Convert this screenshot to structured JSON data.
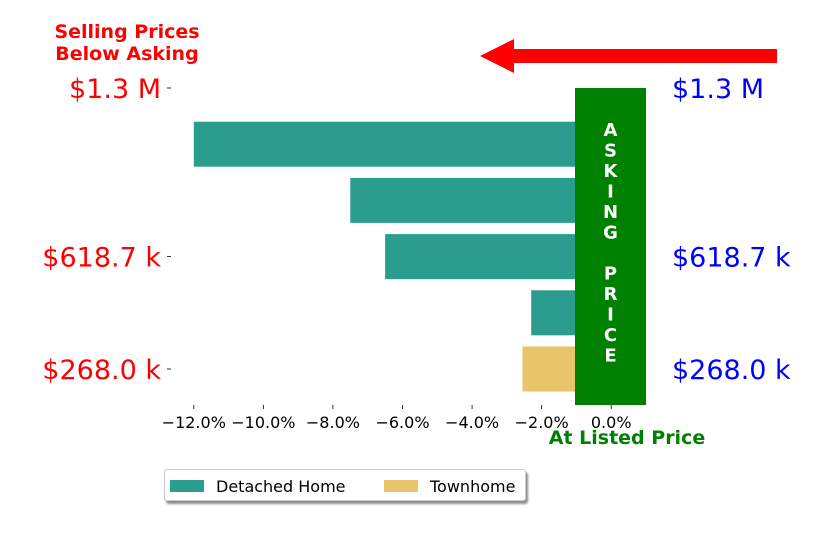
{
  "chart_data": {
    "type": "bar",
    "orientation": "horizontal",
    "title_left": [
      "Selling Prices",
      "Below Asking"
    ],
    "xlabel": "At Listed Price",
    "asking_price_label": [
      "A",
      "S",
      "K",
      "I",
      "N",
      "G",
      "",
      "P",
      "R",
      "I",
      "C",
      "E"
    ],
    "xlim": [
      -13.0,
      1.0
    ],
    "x_ticks": [
      -12,
      -10,
      -8,
      -6,
      -4,
      -2,
      0
    ],
    "x_tick_labels": [
      "−12.0%",
      "−10.0%",
      "−8.0%",
      "−6.0%",
      "−4.0%",
      "−2.0%",
      "0.0%"
    ],
    "y_tick_labels_left": [
      {
        "label": "$1.3 M",
        "row": 0
      },
      {
        "label": "$618.7 k",
        "row": 3
      },
      {
        "label": "$268.0 k",
        "row": 5
      }
    ],
    "y_tick_labels_right": [
      {
        "label": "$1.3 M",
        "row": 0
      },
      {
        "label": "$618.7 k",
        "row": 3
      },
      {
        "label": "$268.0 k",
        "row": 5
      }
    ],
    "series": [
      {
        "name": "Detached Home",
        "color": "#2a9d8f"
      },
      {
        "name": "Townhome",
        "color": "#e9c46a"
      }
    ],
    "bars": [
      {
        "row": 1,
        "value": -12.0,
        "series": 0
      },
      {
        "row": 2,
        "value": -7.5,
        "series": 0
      },
      {
        "row": 3,
        "value": -6.5,
        "series": 0
      },
      {
        "row": 4,
        "value": -2.3,
        "series": 0
      },
      {
        "row": 5,
        "value": -2.55,
        "series": 1
      }
    ],
    "row_count": 6,
    "colors": {
      "below_asking": "#ff0000",
      "right_labels": "#0000ff",
      "asking_band": "#008000",
      "band_text": "#ffffff"
    },
    "arrow": "pointing-left",
    "legend_location": "bottom-center",
    "grid": false
  }
}
